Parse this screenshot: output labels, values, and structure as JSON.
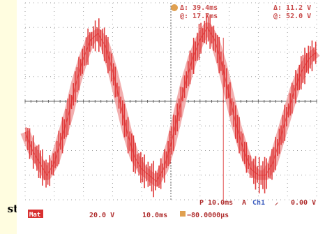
{
  "side_text": "st",
  "readouts": {
    "delta_time": "Δ: 39.4ms",
    "cursor_time": "@: 17.7ms",
    "delta_volt": "Δ: 11.2 V",
    "cursor_volt": "@: 52.0 V"
  },
  "status": {
    "timebase": "P 10.0ms",
    "trigger_source": "A",
    "trigger_channel": "Ch1",
    "trigger_slope": "⸝",
    "trigger_level": "0.00 V",
    "math_label": "Mat",
    "math_scale": "20.0 V",
    "time_scale": "10.0ms",
    "trigger_offset": "−80.0000μs"
  },
  "colors": {
    "trace": "#dd2a2a",
    "trace_light": "#f0a0a0",
    "grid": "#888888",
    "text": "#c84848",
    "badge": "#d83030",
    "cursor_icon": "#e0a050"
  },
  "chart_data": {
    "type": "line",
    "title": "",
    "xlabel": "",
    "ylabel": "",
    "xlim": [
      0,
      100
    ],
    "ylim": [
      -80,
      80
    ],
    "grid": true,
    "x_divisions": 10,
    "y_divisions": 8,
    "series": [
      {
        "x": [
          0,
          2.5,
          5,
          7.5,
          10,
          12.5,
          15,
          17.5,
          20,
          22.5,
          25,
          27.5,
          30,
          32.5,
          35,
          37.5,
          40,
          42.5,
          45,
          47.5,
          50,
          52.5,
          55,
          57.5,
          60,
          62.5,
          65,
          67.5,
          70,
          72.5,
          75,
          77.5,
          80,
          82.5,
          85,
          87.5,
          90,
          92.5,
          95,
          97.5,
          100
        ],
        "values": [
          -25,
          -40,
          -50,
          -60,
          -50,
          -30,
          -10,
          15,
          35,
          50,
          55,
          45,
          25,
          0,
          -25,
          -45,
          -55,
          -60,
          -65,
          -55,
          -35,
          -10,
          15,
          35,
          50,
          60,
          50,
          30,
          5,
          -20,
          -40,
          -55,
          -60,
          -60,
          -50,
          -30,
          -10,
          10,
          25,
          35,
          40
        ]
      }
    ]
  }
}
